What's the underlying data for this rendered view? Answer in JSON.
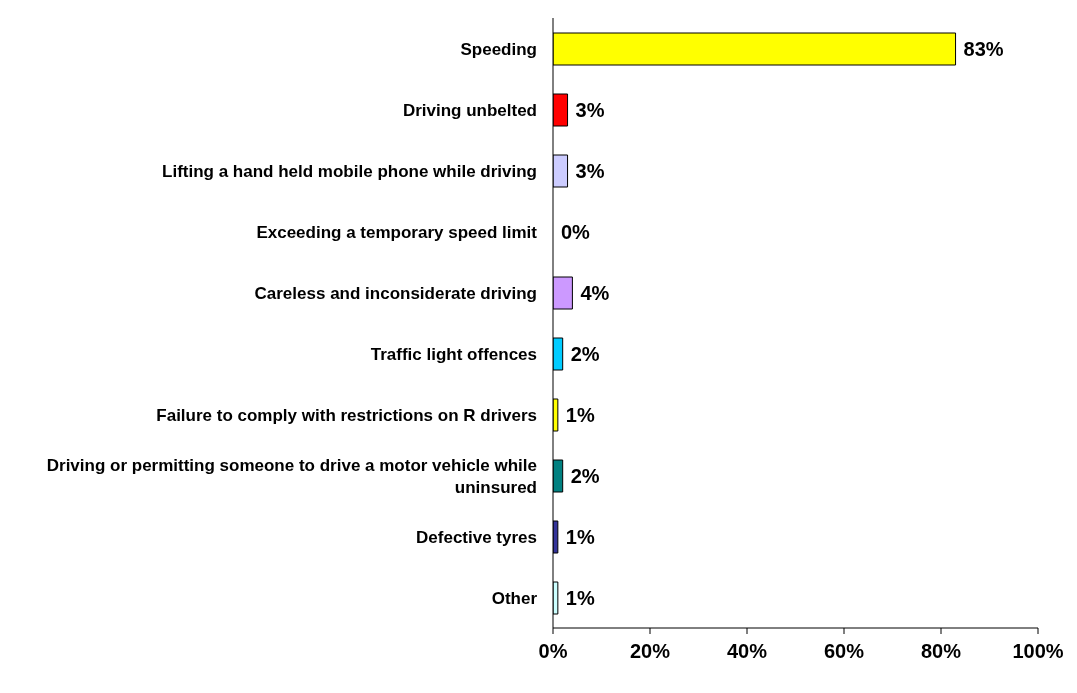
{
  "chart_data": {
    "type": "bar",
    "orientation": "horizontal",
    "categories": [
      "Speeding",
      "Driving unbelted",
      "Lifting a hand held mobile phone while driving",
      "Exceeding a temporary speed limit",
      "Careless and inconsiderate driving",
      "Traffic light offences",
      "Failure to comply with restrictions on R drivers",
      "Driving or permitting someone to drive a motor vehicle while uninsured",
      "Defective tyres",
      "Other"
    ],
    "values": [
      83,
      3,
      3,
      0,
      4,
      2,
      1,
      2,
      1,
      1
    ],
    "colors": [
      "#ffff00",
      "#ff0000",
      "#ccccff",
      "#ffffff",
      "#cc99ff",
      "#00ccff",
      "#ffff00",
      "#008080",
      "#333399",
      "#ccffff"
    ],
    "value_labels": [
      "83%",
      "3%",
      "3%",
      "0%",
      "4%",
      "2%",
      "1%",
      "2%",
      "1%",
      "1%"
    ],
    "xlim": [
      0,
      100
    ],
    "xticks": [
      {
        "value": 0,
        "label": "0%"
      },
      {
        "value": 20,
        "label": "20%"
      },
      {
        "value": 40,
        "label": "40%"
      },
      {
        "value": 60,
        "label": "60%"
      },
      {
        "value": 80,
        "label": "80%"
      },
      {
        "value": 100,
        "label": "100%"
      }
    ],
    "grid": false
  }
}
